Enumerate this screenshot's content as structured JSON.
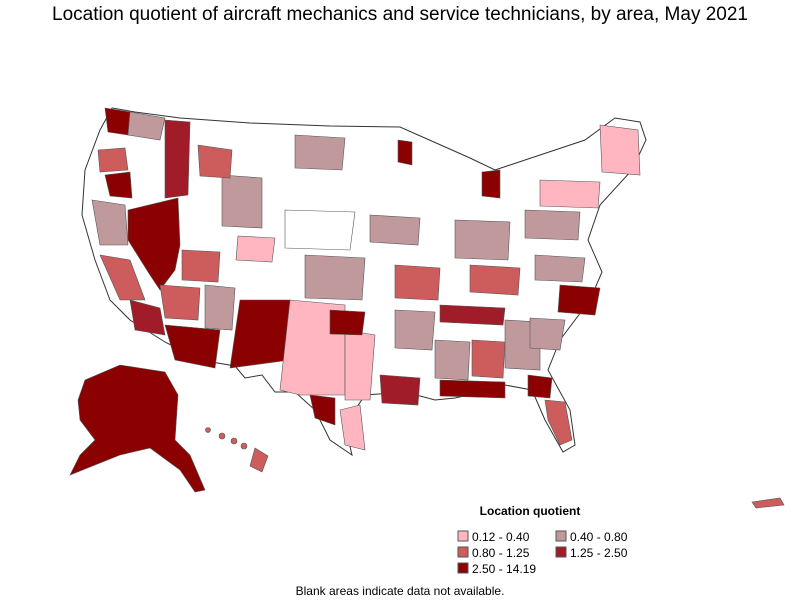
{
  "title": "Location quotient of aircraft mechanics and service technicians, by area, May 2021",
  "legend": {
    "title": "Location quotient",
    "items": [
      {
        "label": "0.12 - 0.40",
        "color": "#ffb6c1"
      },
      {
        "label": "0.40 - 0.80",
        "color": "#c0999c"
      },
      {
        "label": "0.80 - 1.25",
        "color": "#cd5c5c"
      },
      {
        "label": "1.25 - 2.50",
        "color": "#a01c28"
      },
      {
        "label": "2.50 - 14.19",
        "color": "#8b0000"
      }
    ]
  },
  "note": "Blank areas indicate data not available."
}
